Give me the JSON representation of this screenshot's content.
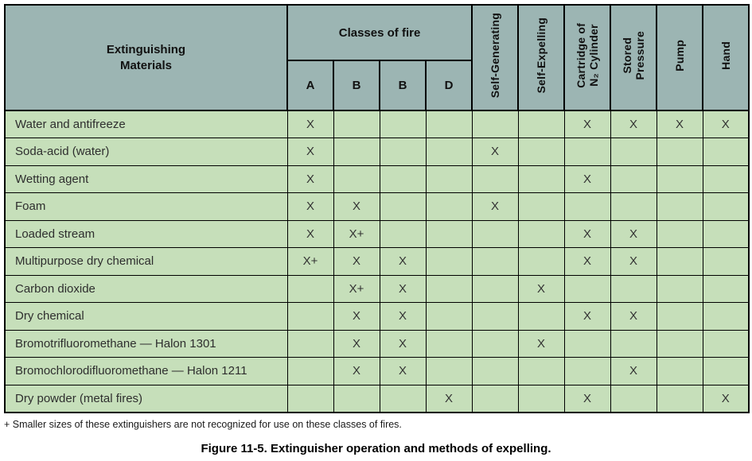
{
  "table": {
    "materials_header": "Extinguishing\nMaterials",
    "classes_header": "Classes of fire",
    "class_columns": [
      "A",
      "B",
      "B",
      "D"
    ],
    "method_columns": [
      "Self-Generating",
      "Self-Expelling",
      "Cartridge of\nN₂ Cylinder",
      "Stored\nPressure",
      "Pump",
      "Hand"
    ],
    "rows": [
      {
        "material": "Water and antifreeze",
        "cells": [
          "X",
          "",
          "",
          "",
          "",
          "",
          "X",
          "X",
          "X",
          "X"
        ]
      },
      {
        "material": "Soda-acid (water)",
        "cells": [
          "X",
          "",
          "",
          "",
          "X",
          "",
          "",
          "",
          "",
          ""
        ]
      },
      {
        "material": "Wetting agent",
        "cells": [
          "X",
          "",
          "",
          "",
          "",
          "",
          "X",
          "",
          "",
          ""
        ]
      },
      {
        "material": "Foam",
        "cells": [
          "X",
          "X",
          "",
          "",
          "X",
          "",
          "",
          "",
          "",
          ""
        ]
      },
      {
        "material": "Loaded stream",
        "cells": [
          "X",
          "X+",
          "",
          "",
          "",
          "",
          "X",
          "X",
          "",
          ""
        ]
      },
      {
        "material": "Multipurpose dry chemical",
        "cells": [
          "X+",
          "X",
          "X",
          "",
          "",
          "",
          "X",
          "X",
          "",
          ""
        ]
      },
      {
        "material": "Carbon dioxide",
        "cells": [
          "",
          "X+",
          "X",
          "",
          "",
          "X",
          "",
          "",
          "",
          ""
        ]
      },
      {
        "material": "Dry chemical",
        "cells": [
          "",
          "X",
          "X",
          "",
          "",
          "",
          "X",
          "X",
          "",
          ""
        ]
      },
      {
        "material": "Bromotrifluoromethane — Halon 1301",
        "cells": [
          "",
          "X",
          "X",
          "",
          "",
          "X",
          "",
          "",
          "",
          ""
        ]
      },
      {
        "material": "Bromochlorodifluoromethane — Halon 1211",
        "cells": [
          "",
          "X",
          "X",
          "",
          "",
          "",
          "",
          "X",
          "",
          ""
        ]
      },
      {
        "material": "Dry powder (metal fires)",
        "cells": [
          "",
          "",
          "",
          "X",
          "",
          "",
          "X",
          "",
          "",
          "X"
        ]
      }
    ]
  },
  "footnote": "+ Smaller sizes of these extinguishers are not recognized for use on these classes of fires.",
  "caption": "Figure 11-5. Extinguisher operation and methods of expelling.",
  "colors": {
    "header_bg": "#9cb5b3",
    "body_bg": "#c6dfba",
    "border": "#000000",
    "text": "#1a1a1a"
  }
}
